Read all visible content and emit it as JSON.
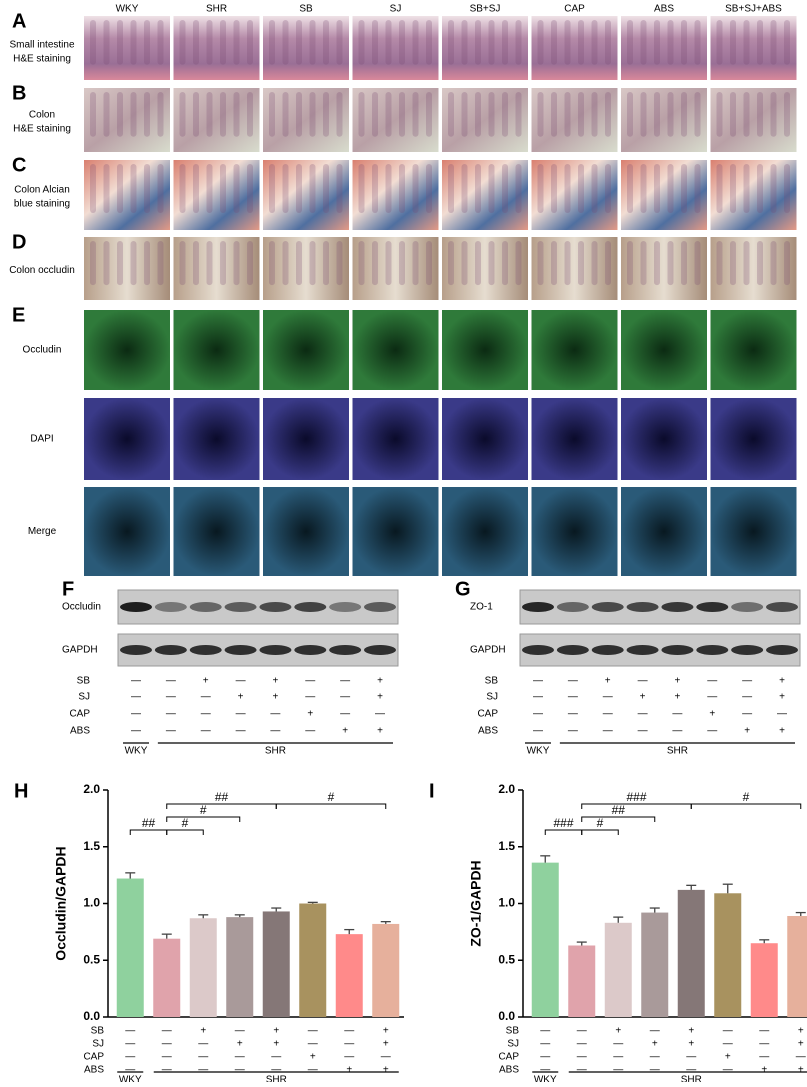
{
  "histology": {
    "columns": [
      "WKY",
      "SHR",
      "SB",
      "SJ",
      "SB+SJ",
      "CAP",
      "ABS",
      "SB+SJ+ABS"
    ],
    "rows": [
      {
        "letter": "A",
        "label": [
          "Small intestine",
          "H&E staining"
        ]
      },
      {
        "letter": "B",
        "label": [
          "Colon",
          "H&E staining"
        ]
      },
      {
        "letter": "C",
        "label": [
          "Colon Alcian",
          "blue staining"
        ]
      },
      {
        "letter": "D",
        "label": [
          "Colon occludin"
        ]
      }
    ]
  },
  "immunofluorescence": {
    "letter": "E",
    "rows": [
      "Occludin",
      "DAPI",
      "Merge"
    ]
  },
  "western_blots": [
    {
      "letter": "F",
      "proteins": [
        "Occludin",
        "GAPDH"
      ]
    },
    {
      "letter": "G",
      "proteins": [
        "ZO-1",
        "GAPDH"
      ]
    }
  ],
  "treatments": {
    "rows": [
      {
        "name": "SB",
        "marks": [
          "—",
          "—",
          "+",
          "—",
          "+",
          "—",
          "—",
          "+"
        ]
      },
      {
        "name": "SJ",
        "marks": [
          "—",
          "—",
          "—",
          "+",
          "+",
          "—",
          "—",
          "+"
        ]
      },
      {
        "name": "CAP",
        "marks": [
          "—",
          "—",
          "—",
          "—",
          "—",
          "+",
          "—",
          "—"
        ]
      },
      {
        "name": "ABS",
        "marks": [
          "—",
          "—",
          "—",
          "—",
          "—",
          "—",
          "+",
          "+"
        ]
      }
    ],
    "groups": [
      "WKY",
      "SHR"
    ]
  },
  "chart_data": [
    {
      "type": "bar",
      "letter": "H",
      "y_label": "Occludin/GAPDH",
      "values": [
        1.22,
        0.69,
        0.87,
        0.88,
        0.93,
        1.0,
        0.73,
        0.82
      ],
      "errors": [
        0.05,
        0.04,
        0.03,
        0.02,
        0.03,
        0.01,
        0.04,
        0.02
      ],
      "colors": [
        "#8fd19e",
        "#e0a3ab",
        "#dcc9c9",
        "#a99a9a",
        "#857777",
        "#a8925f",
        "#ff8a8a",
        "#e6b09c"
      ],
      "ylim": [
        0,
        2
      ],
      "yticks": [
        {
          "value": 0,
          "label": "0.0"
        },
        {
          "value": 0.5,
          "label": "0.5"
        },
        {
          "value": 1,
          "label": "1.0"
        },
        {
          "value": 1.5,
          "label": "1.5"
        },
        {
          "value": 2,
          "label": "2.0"
        }
      ],
      "annotations": [
        {
          "from": 0,
          "to": 1,
          "label": "##"
        },
        {
          "from": 1,
          "to": 2,
          "label": "#"
        },
        {
          "from": 1,
          "to": 3,
          "label": "#"
        },
        {
          "from": 1,
          "to": 4,
          "label": "##"
        },
        {
          "from": 4,
          "to": 7,
          "label": "#"
        }
      ]
    },
    {
      "type": "bar",
      "letter": "I",
      "y_label": "ZO-1/GAPDH",
      "values": [
        1.36,
        0.63,
        0.83,
        0.92,
        1.12,
        1.09,
        0.65,
        0.89
      ],
      "errors": [
        0.06,
        0.03,
        0.05,
        0.04,
        0.04,
        0.08,
        0.03,
        0.03
      ],
      "colors": [
        "#8fd19e",
        "#e0a3ab",
        "#dcc9c9",
        "#a99a9a",
        "#857777",
        "#a8925f",
        "#ff8a8a",
        "#e6b09c"
      ],
      "ylim": [
        0,
        2
      ],
      "yticks": [
        {
          "value": 0,
          "label": "0.0"
        },
        {
          "value": 0.5,
          "label": "0.5"
        },
        {
          "value": 1,
          "label": "1.0"
        },
        {
          "value": 1.5,
          "label": "1.5"
        },
        {
          "value": 2,
          "label": "2.0"
        }
      ],
      "annotations": [
        {
          "from": 0,
          "to": 1,
          "label": "###"
        },
        {
          "from": 1,
          "to": 2,
          "label": "#"
        },
        {
          "from": 1,
          "to": 3,
          "label": "##"
        },
        {
          "from": 1,
          "to": 4,
          "label": "###"
        },
        {
          "from": 4,
          "to": 7,
          "label": "#"
        }
      ]
    }
  ]
}
